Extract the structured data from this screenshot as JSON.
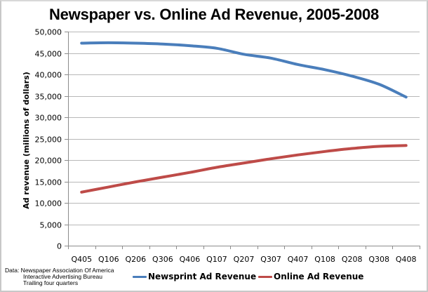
{
  "chart_data": {
    "type": "line",
    "title": "Newspaper vs. Online Ad Revenue, 2005-2008",
    "xlabel": "",
    "ylabel": "Ad revenue (millions of dollars)",
    "ylim": [
      0,
      50000
    ],
    "yticks": [
      0,
      5000,
      10000,
      15000,
      20000,
      25000,
      30000,
      35000,
      40000,
      45000,
      50000
    ],
    "ytick_labels": [
      "0",
      "5,000",
      "10,000",
      "15,000",
      "20,000",
      "25,000",
      "30,000",
      "35,000",
      "40,000",
      "45,000",
      "50,000"
    ],
    "categories": [
      "Q405",
      "Q106",
      "Q206",
      "Q306",
      "Q406",
      "Q107",
      "Q207",
      "Q307",
      "Q407",
      "Q108",
      "Q208",
      "Q308",
      "Q408"
    ],
    "grid": true,
    "legend_position": "bottom",
    "series": [
      {
        "name": "Newsprint Ad Revenue",
        "color": "#4a7ebb",
        "values": [
          47300,
          47400,
          47300,
          47100,
          46700,
          46100,
          44700,
          43800,
          42300,
          41100,
          39600,
          37700,
          34700
        ]
      },
      {
        "name": "Online Ad Revenue",
        "color": "#be4b48",
        "values": [
          12500,
          13700,
          14900,
          16000,
          17100,
          18300,
          19300,
          20300,
          21200,
          22000,
          22700,
          23200,
          23400
        ]
      }
    ]
  },
  "source_note": {
    "lines": [
      "Data: Newspaper Association Of America",
      "Interactive Advertising Bureau",
      "Trailing four quarters"
    ]
  }
}
